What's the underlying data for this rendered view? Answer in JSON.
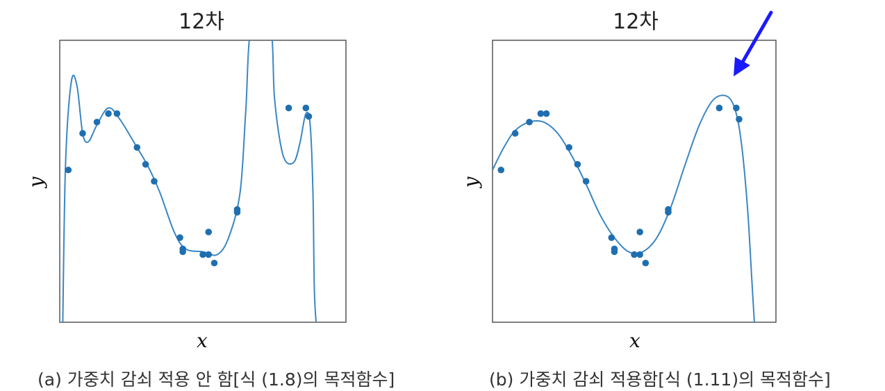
{
  "colors": {
    "curve": "#3a86c4",
    "point": "#1f6fb0",
    "frame": "#555555",
    "arrow": "#1a1aff"
  },
  "icons": {
    "annotation": "arrow-annotation"
  },
  "chart_data": [
    {
      "type": "line+scatter",
      "title": "12차",
      "xlabel": "x",
      "ylabel": "y",
      "caption": "(a) 가중치 감쇠 적용 안 함[식 (1.8)의 목적함수]",
      "xlim": [
        0,
        1
      ],
      "ylim": [
        0,
        1
      ],
      "grid": false,
      "ticks": false,
      "points": [
        {
          "x": 0.03,
          "y": 0.54
        },
        {
          "x": 0.08,
          "y": 0.67
        },
        {
          "x": 0.13,
          "y": 0.71
        },
        {
          "x": 0.17,
          "y": 0.74
        },
        {
          "x": 0.2,
          "y": 0.74
        },
        {
          "x": 0.27,
          "y": 0.62
        },
        {
          "x": 0.3,
          "y": 0.56
        },
        {
          "x": 0.33,
          "y": 0.5
        },
        {
          "x": 0.42,
          "y": 0.3
        },
        {
          "x": 0.43,
          "y": 0.26
        },
        {
          "x": 0.43,
          "y": 0.25
        },
        {
          "x": 0.5,
          "y": 0.24
        },
        {
          "x": 0.52,
          "y": 0.24
        },
        {
          "x": 0.52,
          "y": 0.32
        },
        {
          "x": 0.54,
          "y": 0.21
        },
        {
          "x": 0.62,
          "y": 0.4
        },
        {
          "x": 0.62,
          "y": 0.39
        },
        {
          "x": 0.8,
          "y": 0.76
        },
        {
          "x": 0.86,
          "y": 0.76
        },
        {
          "x": 0.87,
          "y": 0.73
        }
      ],
      "curve": [
        {
          "x": 0.01,
          "y": -0.05
        },
        {
          "x": 0.02,
          "y": 0.55
        },
        {
          "x": 0.04,
          "y": 0.85
        },
        {
          "x": 0.06,
          "y": 0.84
        },
        {
          "x": 0.08,
          "y": 0.67
        },
        {
          "x": 0.1,
          "y": 0.64
        },
        {
          "x": 0.13,
          "y": 0.7
        },
        {
          "x": 0.17,
          "y": 0.76
        },
        {
          "x": 0.21,
          "y": 0.72
        },
        {
          "x": 0.27,
          "y": 0.62
        },
        {
          "x": 0.31,
          "y": 0.55
        },
        {
          "x": 0.35,
          "y": 0.46
        },
        {
          "x": 0.4,
          "y": 0.32
        },
        {
          "x": 0.44,
          "y": 0.26
        },
        {
          "x": 0.5,
          "y": 0.25
        },
        {
          "x": 0.55,
          "y": 0.24
        },
        {
          "x": 0.59,
          "y": 0.3
        },
        {
          "x": 0.63,
          "y": 0.46
        },
        {
          "x": 0.65,
          "y": 0.75
        },
        {
          "x": 0.67,
          "y": 1.05
        },
        {
          "x": 0.735,
          "y": 1.05
        },
        {
          "x": 0.75,
          "y": 0.8
        },
        {
          "x": 0.77,
          "y": 0.64
        },
        {
          "x": 0.79,
          "y": 0.57
        },
        {
          "x": 0.82,
          "y": 0.57
        },
        {
          "x": 0.84,
          "y": 0.64
        },
        {
          "x": 0.86,
          "y": 0.74
        },
        {
          "x": 0.875,
          "y": 0.7
        },
        {
          "x": 0.885,
          "y": 0.45
        },
        {
          "x": 0.89,
          "y": 0.1
        },
        {
          "x": 0.9,
          "y": -0.05
        }
      ]
    },
    {
      "type": "line+scatter",
      "title": "12차",
      "xlabel": "x",
      "ylabel": "y",
      "caption": "(b) 가중치 감쇠 적용함[식 (1.11)의 목적함수]",
      "xlim": [
        0,
        1
      ],
      "ylim": [
        0,
        1
      ],
      "grid": false,
      "ticks": false,
      "annotation": "arrow pointing to the right peak of the curve",
      "points": [
        {
          "x": 0.03,
          "y": 0.54
        },
        {
          "x": 0.08,
          "y": 0.67
        },
        {
          "x": 0.13,
          "y": 0.71
        },
        {
          "x": 0.17,
          "y": 0.74
        },
        {
          "x": 0.19,
          "y": 0.74
        },
        {
          "x": 0.27,
          "y": 0.62
        },
        {
          "x": 0.3,
          "y": 0.56
        },
        {
          "x": 0.33,
          "y": 0.5
        },
        {
          "x": 0.42,
          "y": 0.3
        },
        {
          "x": 0.43,
          "y": 0.26
        },
        {
          "x": 0.43,
          "y": 0.25
        },
        {
          "x": 0.5,
          "y": 0.24
        },
        {
          "x": 0.52,
          "y": 0.24
        },
        {
          "x": 0.52,
          "y": 0.32
        },
        {
          "x": 0.54,
          "y": 0.21
        },
        {
          "x": 0.62,
          "y": 0.4
        },
        {
          "x": 0.62,
          "y": 0.39
        },
        {
          "x": 0.8,
          "y": 0.76
        },
        {
          "x": 0.86,
          "y": 0.76
        },
        {
          "x": 0.87,
          "y": 0.72
        }
      ],
      "curve": [
        {
          "x": 0.0,
          "y": 0.54
        },
        {
          "x": 0.04,
          "y": 0.62
        },
        {
          "x": 0.08,
          "y": 0.68
        },
        {
          "x": 0.13,
          "y": 0.71
        },
        {
          "x": 0.18,
          "y": 0.71
        },
        {
          "x": 0.23,
          "y": 0.67
        },
        {
          "x": 0.28,
          "y": 0.59
        },
        {
          "x": 0.33,
          "y": 0.49
        },
        {
          "x": 0.38,
          "y": 0.38
        },
        {
          "x": 0.43,
          "y": 0.3
        },
        {
          "x": 0.48,
          "y": 0.25
        },
        {
          "x": 0.53,
          "y": 0.25
        },
        {
          "x": 0.58,
          "y": 0.3
        },
        {
          "x": 0.63,
          "y": 0.41
        },
        {
          "x": 0.68,
          "y": 0.56
        },
        {
          "x": 0.73,
          "y": 0.7
        },
        {
          "x": 0.78,
          "y": 0.79
        },
        {
          "x": 0.83,
          "y": 0.8
        },
        {
          "x": 0.86,
          "y": 0.74
        },
        {
          "x": 0.88,
          "y": 0.62
        },
        {
          "x": 0.9,
          "y": 0.4
        },
        {
          "x": 0.915,
          "y": 0.15
        },
        {
          "x": 0.925,
          "y": -0.02
        }
      ]
    }
  ]
}
